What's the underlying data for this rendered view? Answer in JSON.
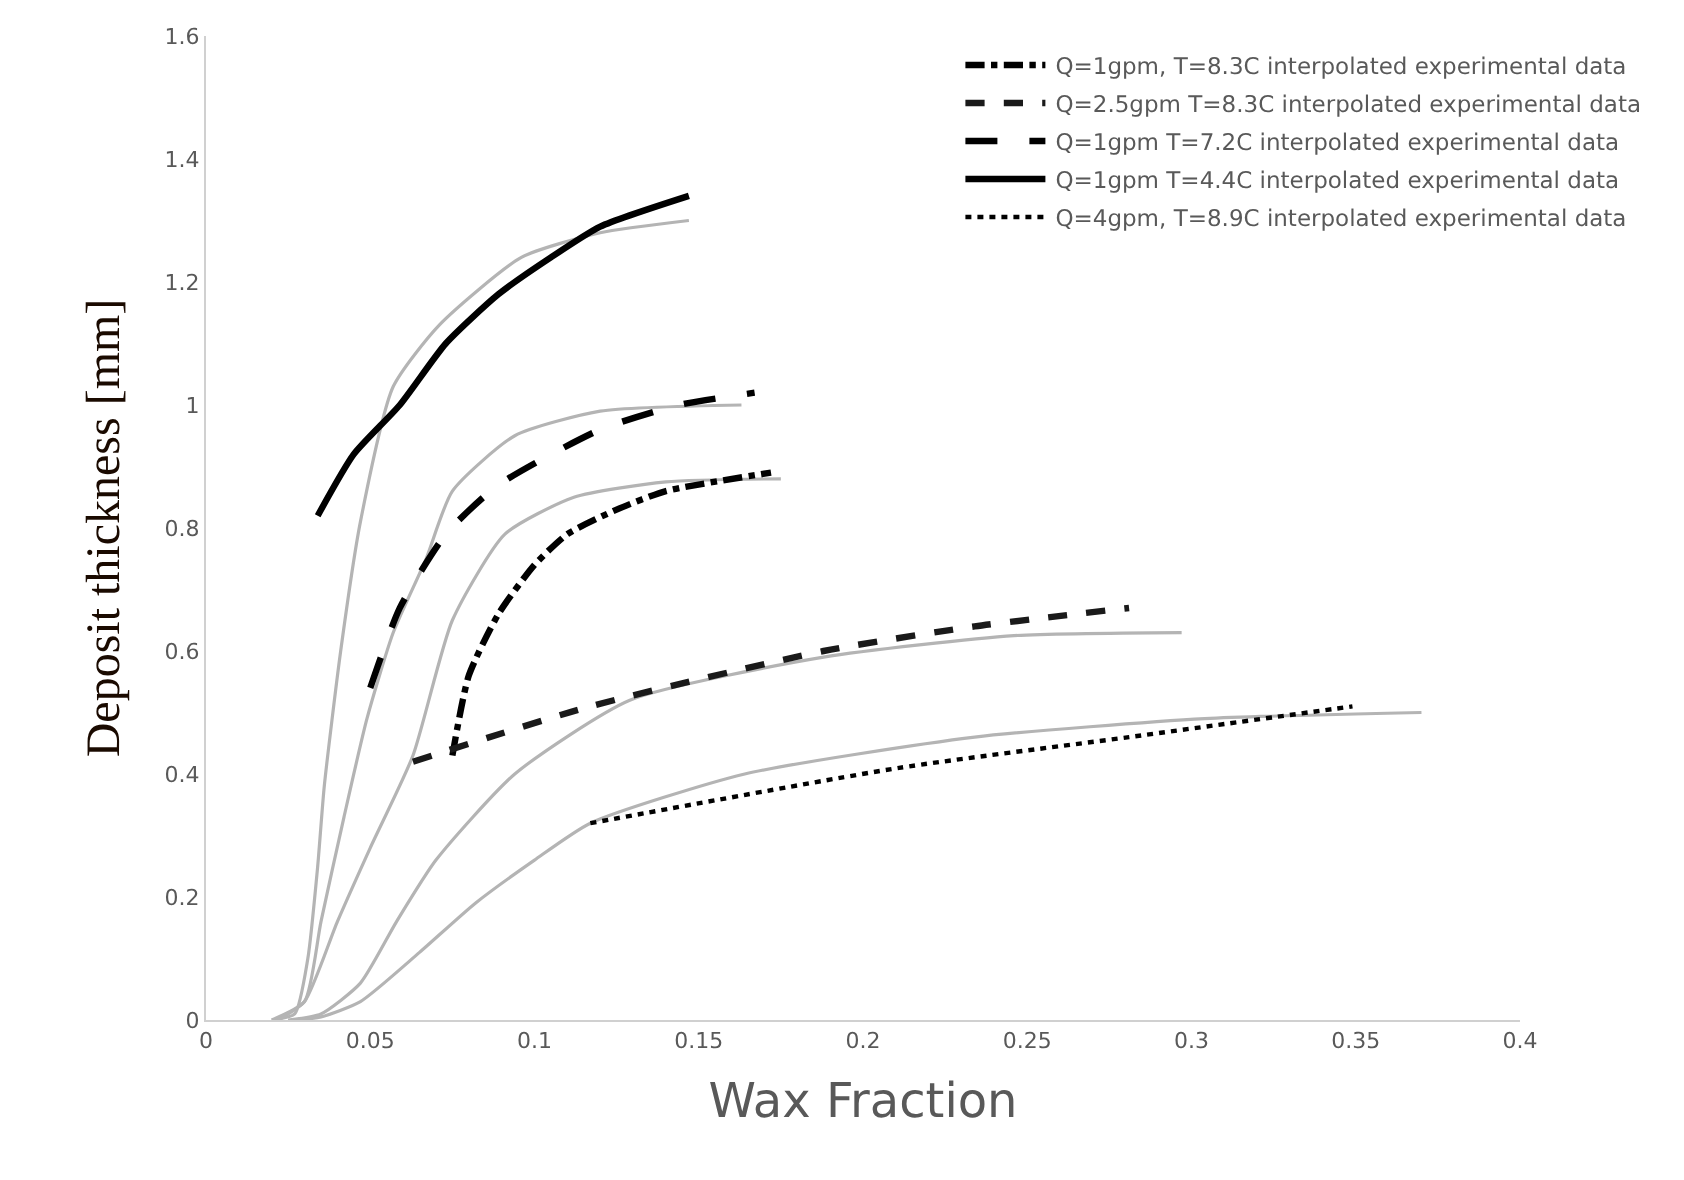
{
  "chart_data": {
    "type": "line",
    "xlabel": "Wax Fraction",
    "ylabel": "Deposit thickness [mm]",
    "xlim": [
      0,
      0.4
    ],
    "xticks": [
      0,
      0.05,
      0.1,
      0.15,
      0.2,
      0.25,
      0.3,
      0.35,
      0.4
    ],
    "ylim": [
      0,
      1.6
    ],
    "yticks": [
      0,
      0.2,
      0.4,
      0.6,
      0.8,
      1,
      1.2,
      1.4,
      1.6
    ],
    "legend": "top right",
    "marker": "none",
    "series": [
      {
        "color": "#b4b4b4",
        "line_style": "solid",
        "x": [
          0.02,
          0.027,
          0.031,
          0.034,
          0.036,
          0.041,
          0.047,
          0.057,
          0.071,
          0.096,
          0.12,
          0.147
        ],
        "values": [
          0,
          0.01,
          0.1,
          0.25,
          0.38,
          0.6,
          0.81,
          1.03,
          1.13,
          1.24,
          1.28,
          1.3
        ]
      },
      {
        "color": "#b4b4b4",
        "line_style": "solid",
        "x": [
          0.02,
          0.03,
          0.035,
          0.042,
          0.049,
          0.057,
          0.067,
          0.075,
          0.094,
          0.12,
          0.163
        ],
        "values": [
          0,
          0.03,
          0.16,
          0.33,
          0.49,
          0.63,
          0.75,
          0.86,
          0.95,
          0.99,
          1.0
        ]
      },
      {
        "color": "#b4b4b4",
        "line_style": "solid",
        "x": [
          0.022,
          0.03,
          0.04,
          0.05,
          0.063,
          0.075,
          0.091,
          0.112,
          0.14,
          0.175
        ],
        "values": [
          0,
          0.03,
          0.16,
          0.28,
          0.43,
          0.65,
          0.79,
          0.85,
          0.875,
          0.88
        ]
      },
      {
        "color": "#b4b4b4",
        "line_style": "solid",
        "x": [
          0.025,
          0.035,
          0.047,
          0.058,
          0.07,
          0.094,
          0.129,
          0.188,
          0.246,
          0.297
        ],
        "values": [
          0,
          0.01,
          0.06,
          0.16,
          0.26,
          0.4,
          0.52,
          0.59,
          0.625,
          0.63
        ]
      },
      {
        "color": "#b4b4b4",
        "line_style": "solid",
        "x": [
          0.028,
          0.035,
          0.047,
          0.065,
          0.082,
          0.1,
          0.117,
          0.164,
          0.234,
          0.304,
          0.37
        ],
        "values": [
          0,
          0.005,
          0.03,
          0.11,
          0.19,
          0.26,
          0.32,
          0.4,
          0.46,
          0.49,
          0.5
        ]
      },
      {
        "name": "Q=1gpm, T=8.3C interpolated experimental data",
        "color": "#000000",
        "line_style": "dashdot",
        "x": [
          0.075,
          0.08,
          0.089,
          0.1,
          0.11,
          0.125,
          0.14,
          0.172
        ],
        "values": [
          0.43,
          0.56,
          0.66,
          0.74,
          0.79,
          0.83,
          0.86,
          0.89
        ]
      },
      {
        "name": "Q=2.5gpm T=8.3C interpolated experimental data",
        "color": "#1a1a1a",
        "line_style": "dashed",
        "x": [
          0.063,
          0.117,
          0.188,
          0.234,
          0.281
        ],
        "values": [
          0.42,
          0.51,
          0.6,
          0.64,
          0.67
        ]
      },
      {
        "name": "Q=1gpm T=7.2C interpolated experimental data",
        "color": "#000000",
        "line_style": "longdash",
        "x": [
          0.05,
          0.059,
          0.073,
          0.089,
          0.12,
          0.144,
          0.167
        ],
        "values": [
          0.54,
          0.67,
          0.79,
          0.87,
          0.96,
          1.0,
          1.02
        ]
      },
      {
        "name": "Q=1gpm T=4.4C interpolated experimental data",
        "color": "#000000",
        "line_style": "solid",
        "x": [
          0.034,
          0.045,
          0.059,
          0.073,
          0.089,
          0.105,
          0.12,
          0.147
        ],
        "values": [
          0.82,
          0.92,
          1.0,
          1.1,
          1.18,
          1.24,
          1.29,
          1.34
        ]
      },
      {
        "name": "Q=4gpm, T=8.9C interpolated experimental data",
        "color": "#000000",
        "line_style": "dotted",
        "x": [
          0.117,
          0.211,
          0.281,
          0.349
        ],
        "values": [
          0.32,
          0.41,
          0.46,
          0.51
        ]
      }
    ]
  }
}
